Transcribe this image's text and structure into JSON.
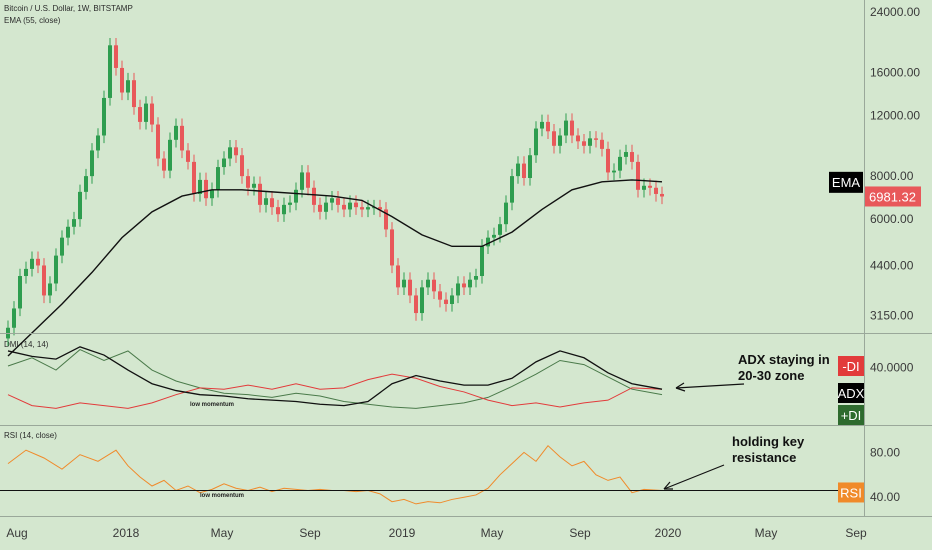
{
  "header": {
    "symbol": "Bitcoin / U.S. Dollar, 1W, BITSTAMP",
    "ema_label": "EMA (55, close)",
    "dmi_label": "DMI (14, 14)",
    "rsi_label": "RSI (14, close)"
  },
  "colors": {
    "background": "#d4e7cf",
    "up": "#2e9d4f",
    "down": "#e8585a",
    "ema": "#111111",
    "plus_di": "#4a7a4a",
    "minus_di": "#e23b3b",
    "adx": "#111111",
    "rsi": "#f08a2a"
  },
  "chart_data": [
    {
      "type": "candlestick",
      "ylim": [
        2800,
        26000
      ],
      "y_scale": "log",
      "price_ticks": [
        "24000.00",
        "16000.00",
        "12000.00",
        "8000.00",
        "6000.00",
        "4400.00",
        "3150.00"
      ],
      "x_ticks": [
        "Aug",
        "2018",
        "May",
        "Sep",
        "2019",
        "May",
        "Sep",
        "2020",
        "May",
        "Sep"
      ],
      "last_price_label": "6981.32",
      "ema_tag": "EMA",
      "candles": [
        [
          2700,
          2900
        ],
        [
          2900,
          3300
        ],
        [
          3300,
          4100
        ],
        [
          4100,
          4300
        ],
        [
          4300,
          4600
        ],
        [
          4600,
          4400
        ],
        [
          4400,
          3600
        ],
        [
          3600,
          3900
        ],
        [
          3900,
          4700
        ],
        [
          4700,
          5300
        ],
        [
          5300,
          5700
        ],
        [
          5700,
          6000
        ],
        [
          6000,
          7200
        ],
        [
          7200,
          8000
        ],
        [
          8000,
          9500
        ],
        [
          9500,
          10500
        ],
        [
          10500,
          13500
        ],
        [
          13500,
          19200
        ],
        [
          19200,
          16500
        ],
        [
          16500,
          14000
        ],
        [
          14000,
          15200
        ],
        [
          15200,
          12700
        ],
        [
          12700,
          11500
        ],
        [
          11500,
          13000
        ],
        [
          13000,
          11300
        ],
        [
          11300,
          9000
        ],
        [
          9000,
          8300
        ],
        [
          8300,
          10200
        ],
        [
          10200,
          11200
        ],
        [
          11200,
          9500
        ],
        [
          9500,
          8800
        ],
        [
          8800,
          7100
        ],
        [
          7100,
          7800
        ],
        [
          7800,
          6900
        ],
        [
          6900,
          7300
        ],
        [
          7300,
          8500
        ],
        [
          8500,
          9000
        ],
        [
          9000,
          9700
        ],
        [
          9700,
          9200
        ],
        [
          9200,
          8000
        ],
        [
          8000,
          7400
        ],
        [
          7400,
          7600
        ],
        [
          7600,
          6600
        ],
        [
          6600,
          6900
        ],
        [
          6900,
          6500
        ],
        [
          6500,
          6200
        ],
        [
          6200,
          6600
        ],
        [
          6600,
          6700
        ],
        [
          6700,
          7300
        ],
        [
          7300,
          8200
        ],
        [
          8200,
          7400
        ],
        [
          7400,
          6600
        ],
        [
          6600,
          6300
        ],
        [
          6300,
          6700
        ],
        [
          6700,
          6900
        ],
        [
          6900,
          6600
        ],
        [
          6600,
          6400
        ],
        [
          6400,
          6700
        ],
        [
          6700,
          6500
        ],
        [
          6500,
          6400
        ],
        [
          6400,
          6500
        ],
        [
          6500,
          6500
        ],
        [
          6500,
          6400
        ],
        [
          6400,
          5600
        ],
        [
          5600,
          4400
        ],
        [
          4400,
          3800
        ],
        [
          3800,
          4000
        ],
        [
          4000,
          3600
        ],
        [
          3600,
          3200
        ],
        [
          3200,
          3800
        ],
        [
          3800,
          4000
        ],
        [
          4000,
          3700
        ],
        [
          3700,
          3500
        ],
        [
          3500,
          3400
        ],
        [
          3400,
          3600
        ],
        [
          3600,
          3900
        ],
        [
          3900,
          3800
        ],
        [
          3800,
          4000
        ],
        [
          4000,
          4100
        ],
        [
          4100,
          5000
        ],
        [
          5000,
          5300
        ],
        [
          5300,
          5400
        ],
        [
          5400,
          5800
        ],
        [
          5800,
          6700
        ],
        [
          6700,
          8000
        ],
        [
          8000,
          8700
        ],
        [
          8700,
          7900
        ],
        [
          7900,
          9200
        ],
        [
          9200,
          11000
        ],
        [
          11000,
          11500
        ],
        [
          11500,
          10800
        ],
        [
          10800,
          9800
        ],
        [
          9800,
          10500
        ],
        [
          10500,
          11600
        ],
        [
          11600,
          10500
        ],
        [
          10500,
          10100
        ],
        [
          10100,
          9800
        ],
        [
          9800,
          10300
        ],
        [
          10300,
          10200
        ],
        [
          10200,
          9600
        ],
        [
          9600,
          8200
        ],
        [
          8200,
          8300
        ],
        [
          8300,
          9100
        ],
        [
          9100,
          9400
        ],
        [
          9400,
          8800
        ],
        [
          8800,
          7300
        ],
        [
          7300,
          7500
        ],
        [
          7500,
          7400
        ],
        [
          7400,
          7100
        ],
        [
          7100,
          6981
        ]
      ],
      "ema": [
        [
          0,
          2400
        ],
        [
          9,
          3400
        ],
        [
          14,
          4200
        ],
        [
          19,
          5300
        ],
        [
          24,
          6300
        ],
        [
          29,
          7000
        ],
        [
          34,
          7300
        ],
        [
          39,
          7300
        ],
        [
          44,
          7200
        ],
        [
          49,
          7100
        ],
        [
          54,
          7000
        ],
        [
          59,
          6800
        ],
        [
          64,
          6100
        ],
        [
          69,
          5400
        ],
        [
          74,
          5000
        ],
        [
          79,
          5000
        ],
        [
          84,
          5500
        ],
        [
          89,
          6400
        ],
        [
          94,
          7300
        ],
        [
          99,
          7700
        ],
        [
          104,
          7800
        ],
        [
          109,
          7700
        ]
      ]
    },
    {
      "type": "line",
      "title": "DMI (14, 14)",
      "ylim": [
        0,
        60
      ],
      "y_tick": "40.0000",
      "tags": [
        "-DI",
        "ADX",
        "+DI"
      ],
      "annotation": "low momentum",
      "note": [
        "ADX staying in",
        "20-30 zone"
      ],
      "series": [
        {
          "name": "+DI",
          "values": [
            [
              0,
              41
            ],
            [
              4,
              47
            ],
            [
              8,
              38
            ],
            [
              12,
              53
            ],
            [
              16,
              45
            ],
            [
              20,
              52
            ],
            [
              24,
              38
            ],
            [
              28,
              30
            ],
            [
              32,
              25
            ],
            [
              36,
              21
            ],
            [
              40,
              20
            ],
            [
              44,
              18
            ],
            [
              48,
              21
            ],
            [
              52,
              19
            ],
            [
              56,
              15
            ],
            [
              60,
              13
            ],
            [
              64,
              11
            ],
            [
              68,
              10
            ],
            [
              72,
              12
            ],
            [
              76,
              14
            ],
            [
              80,
              18
            ],
            [
              84,
              26
            ],
            [
              88,
              35
            ],
            [
              92,
              45
            ],
            [
              96,
              42
            ],
            [
              100,
              33
            ],
            [
              104,
              24
            ],
            [
              109,
              20
            ]
          ]
        },
        {
          "name": "-DI",
          "values": [
            [
              0,
              20
            ],
            [
              4,
              12
            ],
            [
              8,
              10
            ],
            [
              12,
              14
            ],
            [
              16,
              12
            ],
            [
              20,
              10
            ],
            [
              24,
              14
            ],
            [
              28,
              20
            ],
            [
              32,
              25
            ],
            [
              36,
              24
            ],
            [
              40,
              27
            ],
            [
              44,
              24
            ],
            [
              48,
              28
            ],
            [
              52,
              24
            ],
            [
              56,
              25
            ],
            [
              60,
              31
            ],
            [
              64,
              35
            ],
            [
              68,
              32
            ],
            [
              72,
              26
            ],
            [
              76,
              22
            ],
            [
              80,
              16
            ],
            [
              84,
              12
            ],
            [
              88,
              14
            ],
            [
              92,
              11
            ],
            [
              96,
              14
            ],
            [
              100,
              16
            ],
            [
              104,
              25
            ],
            [
              109,
              24
            ]
          ]
        },
        {
          "name": "ADX",
          "values": [
            [
              0,
              52
            ],
            [
              4,
              48
            ],
            [
              8,
              46
            ],
            [
              12,
              55
            ],
            [
              16,
              49
            ],
            [
              20,
              38
            ],
            [
              24,
              28
            ],
            [
              28,
              23
            ],
            [
              32,
              20
            ],
            [
              36,
              19
            ],
            [
              40,
              17
            ],
            [
              44,
              16
            ],
            [
              48,
              15
            ],
            [
              52,
              13
            ],
            [
              56,
              12
            ],
            [
              60,
              15
            ],
            [
              64,
              28
            ],
            [
              68,
              34
            ],
            [
              72,
              30
            ],
            [
              76,
              27
            ],
            [
              80,
              27
            ],
            [
              84,
              32
            ],
            [
              88,
              44
            ],
            [
              92,
              52
            ],
            [
              96,
              47
            ],
            [
              100,
              36
            ],
            [
              104,
              28
            ],
            [
              109,
              24
            ]
          ]
        }
      ]
    },
    {
      "type": "line",
      "title": "RSI (14, close)",
      "ylim": [
        25,
        100
      ],
      "y_ticks": [
        "80.00",
        "40.00"
      ],
      "tag": "RSI",
      "resistance": 46,
      "annotation": "low momentum",
      "note": [
        "holding key",
        "resistance"
      ],
      "series": [
        {
          "name": "RSI",
          "values": [
            [
              0,
              70
            ],
            [
              3,
              82
            ],
            [
              6,
              75
            ],
            [
              9,
              65
            ],
            [
              12,
              78
            ],
            [
              15,
              72
            ],
            [
              18,
              82
            ],
            [
              20,
              68
            ],
            [
              22,
              58
            ],
            [
              24,
              50
            ],
            [
              26,
              55
            ],
            [
              28,
              46
            ],
            [
              30,
              50
            ],
            [
              32,
              44
            ],
            [
              34,
              47
            ],
            [
              36,
              52
            ],
            [
              38,
              48
            ],
            [
              40,
              46
            ],
            [
              42,
              49
            ],
            [
              44,
              45
            ],
            [
              46,
              48
            ],
            [
              48,
              47
            ],
            [
              50,
              46
            ],
            [
              52,
              47
            ],
            [
              54,
              46
            ],
            [
              56,
              46
            ],
            [
              58,
              45
            ],
            [
              60,
              46
            ],
            [
              62,
              43
            ],
            [
              64,
              36
            ],
            [
              66,
              38
            ],
            [
              68,
              34
            ],
            [
              70,
              36
            ],
            [
              72,
              35
            ],
            [
              74,
              38
            ],
            [
              76,
              40
            ],
            [
              78,
              42
            ],
            [
              80,
              48
            ],
            [
              82,
              60
            ],
            [
              84,
              70
            ],
            [
              86,
              80
            ],
            [
              88,
              72
            ],
            [
              90,
              86
            ],
            [
              92,
              76
            ],
            [
              94,
              68
            ],
            [
              96,
              72
            ],
            [
              98,
              60
            ],
            [
              100,
              55
            ],
            [
              102,
              58
            ],
            [
              104,
              44
            ],
            [
              106,
              47
            ],
            [
              109,
              46
            ]
          ]
        }
      ]
    }
  ]
}
